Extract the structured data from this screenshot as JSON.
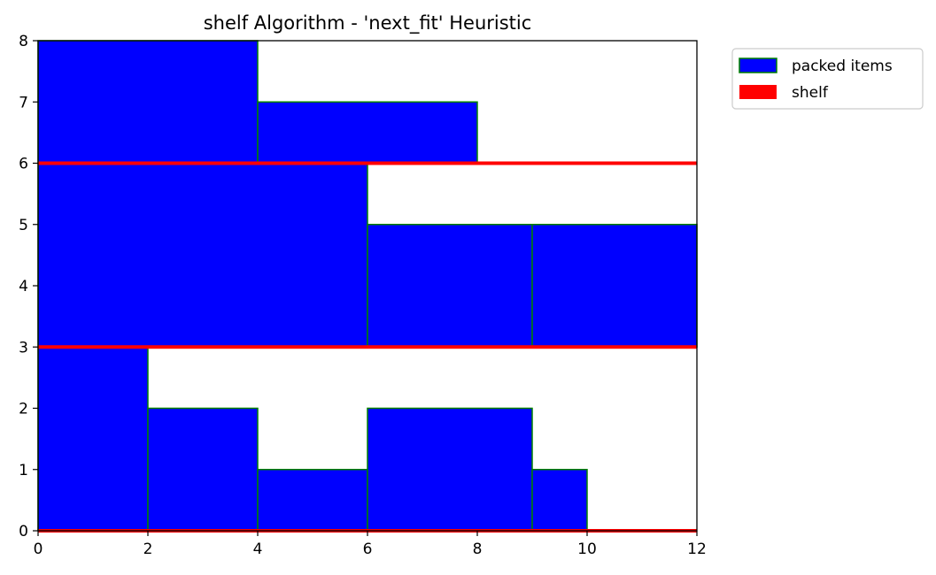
{
  "chart_data": {
    "type": "bar",
    "title": "shelf Algorithm - 'next_fit' Heuristic",
    "xlabel": "",
    "ylabel": "",
    "xlim": [
      0,
      12
    ],
    "ylim": [
      0,
      8
    ],
    "x_ticks": [
      0,
      2,
      4,
      6,
      8,
      10,
      12
    ],
    "y_ticks": [
      0,
      1,
      2,
      3,
      4,
      5,
      6,
      7,
      8
    ],
    "grid": false,
    "legend_position": "outside-top-right",
    "colors": {
      "item_fill": "#0000ff",
      "item_edge": "#008000",
      "shelf": "#ff0000"
    },
    "legend": [
      {
        "label": "packed items",
        "kind": "item"
      },
      {
        "label": "shelf",
        "kind": "shelf"
      }
    ],
    "series": [
      {
        "name": "packed items",
        "rects": [
          {
            "x": 0,
            "y": 0,
            "w": 2,
            "h": 3
          },
          {
            "x": 2,
            "y": 0,
            "w": 2,
            "h": 2
          },
          {
            "x": 4,
            "y": 0,
            "w": 2,
            "h": 1
          },
          {
            "x": 6,
            "y": 0,
            "w": 3,
            "h": 2
          },
          {
            "x": 9,
            "y": 0,
            "w": 1,
            "h": 1
          },
          {
            "x": 0,
            "y": 3,
            "w": 6,
            "h": 3
          },
          {
            "x": 6,
            "y": 3,
            "w": 3,
            "h": 2
          },
          {
            "x": 9,
            "y": 3,
            "w": 3,
            "h": 2
          },
          {
            "x": 0,
            "y": 6,
            "w": 4,
            "h": 2
          },
          {
            "x": 4,
            "y": 6,
            "w": 4,
            "h": 1
          }
        ]
      },
      {
        "name": "shelf",
        "levels": [
          0,
          3,
          6
        ]
      }
    ]
  }
}
